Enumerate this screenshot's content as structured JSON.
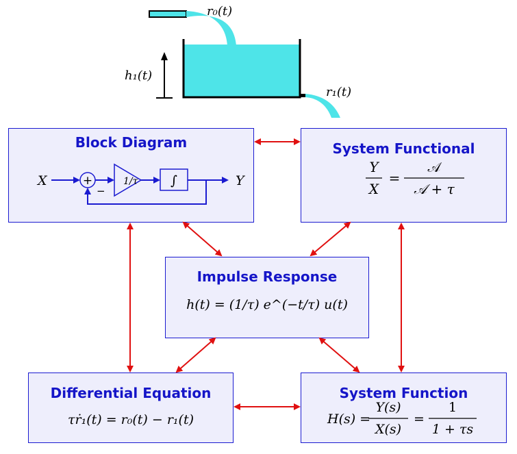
{
  "tank": {
    "inflow_label": "r₀(t)",
    "outflow_label": "r₁(t)",
    "height_label": "h₁(t)"
  },
  "boxes": {
    "block_diagram": {
      "title": "Block Diagram",
      "input": "X",
      "output": "Y",
      "minus": "−",
      "gain": "1/τ",
      "integrator": "∫"
    },
    "system_functional": {
      "title": "System Functional",
      "lhs_num": "Y",
      "lhs_den": "X",
      "rhs_num": "𝒜",
      "rhs_den": "𝒜 + τ"
    },
    "impulse_response": {
      "title": "Impulse Response",
      "equation": "h(t) = (1/τ) e^(−t/τ) u(t)"
    },
    "differential_equation": {
      "title": "Differential Equation",
      "equation": "τṙ₁(t) = r₀(t) − r₁(t)"
    },
    "system_function": {
      "title": "System Function",
      "lhs": "H(s) =",
      "mid_num": "Y(s)",
      "mid_den": "X(s)",
      "rhs_num": "1",
      "rhs_den": "1 + τs"
    }
  },
  "colors": {
    "box_fill": "#eeeefc",
    "box_border": "#1a1ad0",
    "title": "#1515c8",
    "arrow": "#e01010",
    "water": "#4ee4e8",
    "diagram_line": "#1a1ad0"
  }
}
